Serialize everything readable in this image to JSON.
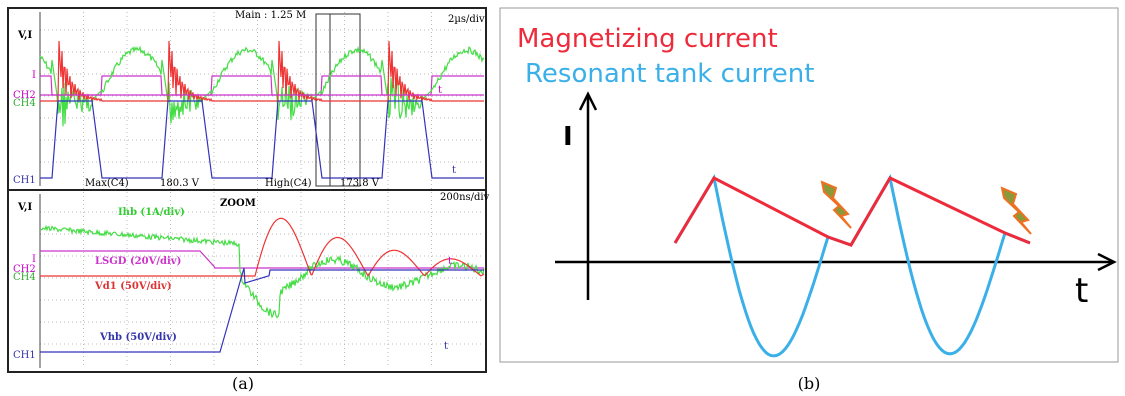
{
  "panel_a": {
    "scope_top": {
      "y_label": "V,I",
      "main": "Main : 1.25 M",
      "timebase": "2µs/div",
      "marker_i": "I",
      "marker_t": "t",
      "ch2": "CH2",
      "ch4": "CH4",
      "ch1": "CH1",
      "axis_t": "t",
      "measurements": [
        "Max(C4)",
        "180.3 V",
        "High(C4)",
        "173.8 V"
      ]
    },
    "scope_bottom": {
      "y_label": "V,I",
      "zoom": "ZOOM",
      "timebase": "200ns/div",
      "marker_i": "I",
      "marker_t": "t",
      "ch2": "CH2",
      "ch4": "CH4",
      "ch1": "CH1",
      "axis_t": "t",
      "traces": [
        "Ihb (1A/div)",
        "LSGD (20V/div)",
        "Vd1 (50V/div)",
        "Vhb (50V/div)"
      ]
    },
    "caption": "(a)"
  },
  "panel_b": {
    "legend": [
      "Magnetizing current",
      "Resonant tank current"
    ],
    "y_label": "I",
    "x_label": "t",
    "caption": "(b)"
  }
}
